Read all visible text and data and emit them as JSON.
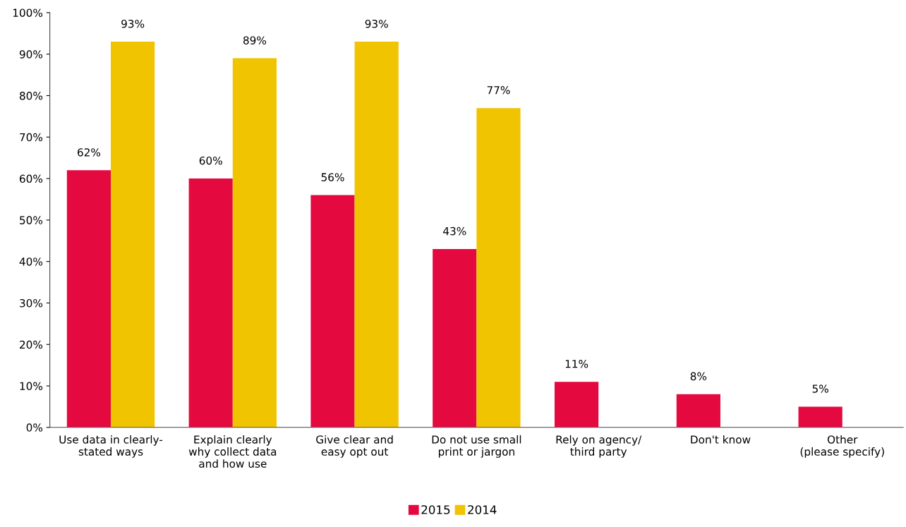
{
  "chart_data": {
    "type": "bar",
    "categories": [
      "Use data in clearly-\nstated ways",
      "Explain clearly\nwhy collect data\nand how use",
      "Give clear and\neasy opt out",
      "Do not use small\nprint or jargon",
      "Rely on agency/\nthird party",
      "Don't know",
      "Other\n(please specify)"
    ],
    "series": [
      {
        "name": "2015",
        "color": "#e4093f",
        "values": [
          62,
          60,
          56,
          43,
          11,
          8,
          5
        ],
        "value_labels": [
          "62%",
          "60%",
          "56%",
          "43%",
          "11%",
          "8%",
          "5%"
        ]
      },
      {
        "name": "2014",
        "color": "#f0c400",
        "values": [
          93,
          89,
          93,
          77,
          null,
          null,
          null
        ],
        "value_labels": [
          "93%",
          "89%",
          "93%",
          "77%",
          null,
          null,
          null
        ]
      }
    ],
    "ylim": [
      0,
      100
    ],
    "yticks": [
      {
        "value": 0,
        "label": "0%"
      },
      {
        "value": 10,
        "label": "10%"
      },
      {
        "value": 20,
        "label": "20%"
      },
      {
        "value": 30,
        "label": "30%"
      },
      {
        "value": 40,
        "label": "40%"
      },
      {
        "value": 50,
        "label": "50%"
      },
      {
        "value": 60,
        "label": "60%"
      },
      {
        "value": 70,
        "label": "70%"
      },
      {
        "value": 80,
        "label": "80%"
      },
      {
        "value": 90,
        "label": "90%"
      },
      {
        "value": 100,
        "label": "100%"
      }
    ],
    "grid": false,
    "legend": "bottom"
  }
}
